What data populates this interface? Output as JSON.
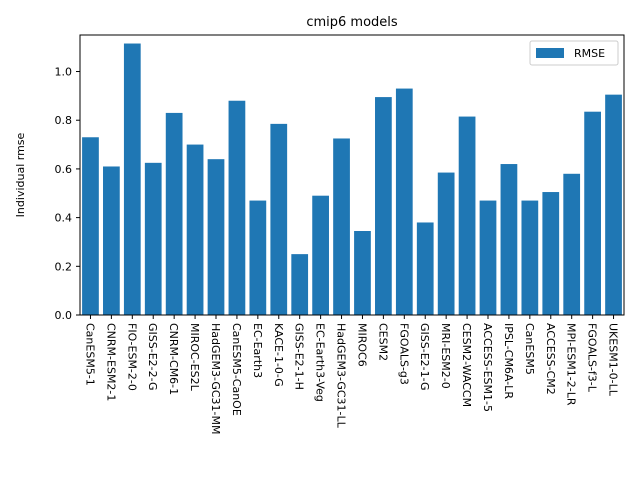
{
  "chart_data": {
    "type": "bar",
    "title": "cmip6 models",
    "xlabel": "",
    "ylabel": "Individual rmse",
    "ylim": [
      0,
      1.15
    ],
    "yticks": [
      0.0,
      0.2,
      0.4,
      0.6,
      0.8,
      1.0
    ],
    "ytick_labels": [
      "0.0",
      "0.2",
      "0.4",
      "0.6",
      "0.8",
      "1.0"
    ],
    "grid": false,
    "legend_position": "top-right",
    "categories": [
      "CanESM5-1",
      "CNRM-ESM2-1",
      "FIO-ESM-2-0",
      "GISS-E2-2-G",
      "CNRM-CM6-1",
      "MIROC-ES2L",
      "HadGEM3-GC31-MM",
      "CanESM5-CanOE",
      "EC-Earth3",
      "KACE-1-0-G",
      "GISS-E2-1-H",
      "EC-Earth3-Veg",
      "HadGEM3-GC31-LL",
      "MIROC6",
      "CESM2",
      "FGOALS-g3",
      "GISS-E2-1-G",
      "MRI-ESM2-0",
      "CESM2-WACCM",
      "ACCESS-ESM1-5",
      "IPSL-CM6A-LR",
      "CanESM5",
      "ACCESS-CM2",
      "MPI-ESM1-2-LR",
      "FGOALS-f3-L",
      "UKESM1-0-LL"
    ],
    "series": [
      {
        "name": "RMSE",
        "color": "#1f77b4",
        "values": [
          0.73,
          0.61,
          1.115,
          0.625,
          0.83,
          0.7,
          0.64,
          0.88,
          0.47,
          0.785,
          0.25,
          0.49,
          0.725,
          0.345,
          0.895,
          0.93,
          0.38,
          0.585,
          0.815,
          0.47,
          0.62,
          0.47,
          0.505,
          0.58,
          0.835,
          0.905
        ]
      }
    ]
  }
}
